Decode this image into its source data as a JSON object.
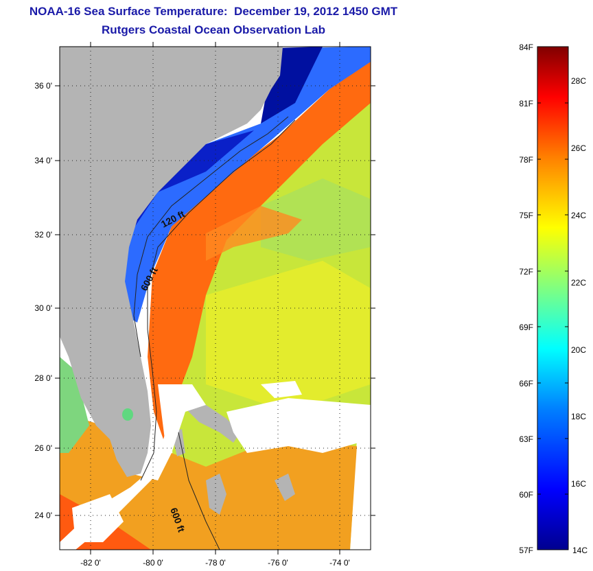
{
  "header": {
    "title": "NOAA-16 Sea Surface Temperature:  December 19, 2012 1450 GMT",
    "subtitle": "Rutgers Coastal Ocean Observation Lab"
  },
  "map": {
    "lat_labels": [
      "36 0'",
      "34 0'",
      "32 0'",
      "30 0'",
      "28 0'",
      "26 0'",
      "24 0'"
    ],
    "lon_labels": [
      "-82 0'",
      "-80 0'",
      "-78 0'",
      "-76 0'",
      "-74 0'"
    ],
    "contour_labels": [
      "120 ft",
      "600 ft",
      "600 ft"
    ],
    "lat_range": [
      23,
      37
    ],
    "lon_range": [
      -83,
      -73
    ],
    "colors": {
      "land": "#b4b4b4",
      "cloud": "#ffffff",
      "title": "#1a1aa8"
    }
  },
  "colorbar": {
    "f_labels": [
      "84F",
      "81F",
      "78F",
      "75F",
      "72F",
      "69F",
      "66F",
      "63F",
      "60F",
      "57F"
    ],
    "c_labels": [
      "28C",
      "26C",
      "24C",
      "22C",
      "20C",
      "18C",
      "16C",
      "14C"
    ],
    "range_f": [
      57,
      84
    ],
    "colors": [
      "#00008f",
      "#0000ff",
      "#0080ff",
      "#00ffff",
      "#80ff80",
      "#ffff00",
      "#ff8000",
      "#ff0000",
      "#800000"
    ]
  }
}
